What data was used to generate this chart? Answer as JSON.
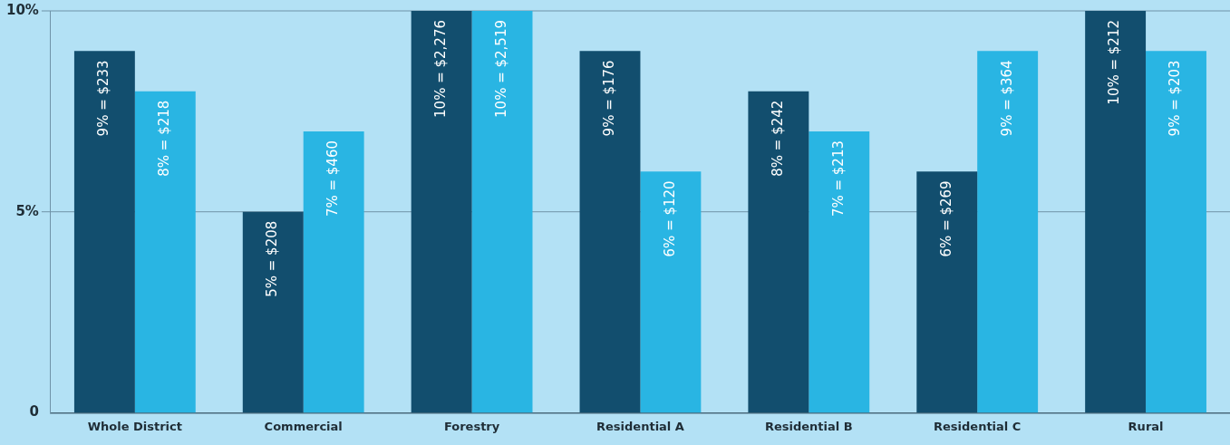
{
  "chart_data": {
    "type": "bar",
    "categories": [
      "Whole District",
      "Commercial",
      "Forestry",
      "Residential A",
      "Residential B",
      "Residential C",
      "Rural"
    ],
    "series": [
      {
        "color": "#124e6e",
        "values": [
          9,
          5,
          10,
          9,
          8,
          6,
          10
        ],
        "value_labels": [
          "9% = $233",
          "5% = $208",
          "10% = $2,276",
          "9% = $176",
          "8% = $242",
          "6% = $269",
          "10% = $212"
        ]
      },
      {
        "color": "#29b5e3",
        "values": [
          8,
          7,
          10,
          6,
          7,
          9,
          9
        ],
        "value_labels": [
          "8% = $218",
          "7% = $460",
          "10% = $2,519",
          "6% = $120",
          "7% = $213",
          "9% = $364",
          "9% = $203"
        ]
      }
    ],
    "ylim": [
      0,
      10
    ],
    "yticks": [
      {
        "value": 0,
        "label": "0"
      },
      {
        "value": 5,
        "label": "5%"
      },
      {
        "value": 10,
        "label": "10%"
      }
    ],
    "ref_lines": [
      {
        "axis": "y",
        "value": 5,
        "color": "#6f93a8"
      },
      {
        "axis": "y",
        "value": 10,
        "color": "#6f93a8"
      }
    ]
  }
}
